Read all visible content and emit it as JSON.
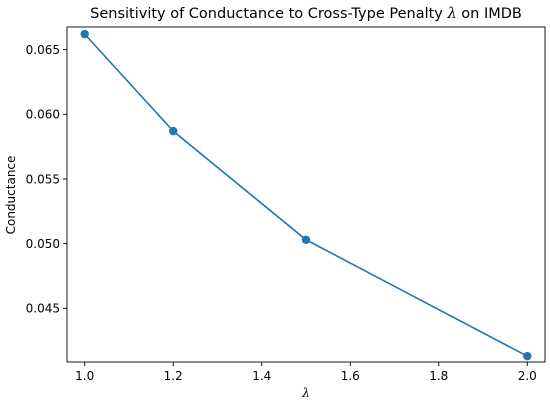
{
  "chart_data": {
    "type": "line",
    "title_prefix": "Sensitivity of Conductance to Cross-Type Penalty ",
    "title_symbol": "λ",
    "title_suffix": " on IMDB",
    "xlabel": "λ",
    "ylabel": "Conductance",
    "x": [
      1.0,
      1.2,
      1.5,
      2.0
    ],
    "y": [
      0.0662,
      0.0587,
      0.0503,
      0.0413
    ],
    "xlim": [
      0.96,
      2.04
    ],
    "ylim": [
      0.04085,
      0.06675
    ],
    "xticks": [
      1.0,
      1.2,
      1.4,
      1.6,
      1.8,
      2.0
    ],
    "xtick_labels": [
      "1.0",
      "1.2",
      "1.4",
      "1.6",
      "1.8",
      "2.0"
    ],
    "yticks": [
      0.045,
      0.05,
      0.055,
      0.06,
      0.065
    ],
    "ytick_labels": [
      "0.045",
      "0.050",
      "0.055",
      "0.060",
      "0.065"
    ],
    "grid": false,
    "line_color": "#1f77b4",
    "marker": "circle"
  }
}
